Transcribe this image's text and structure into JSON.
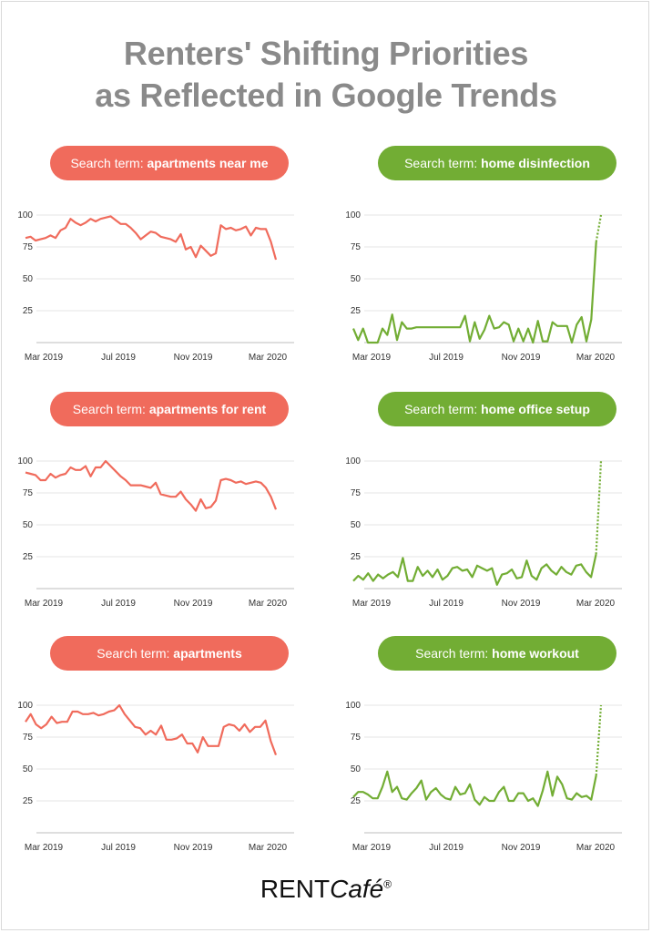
{
  "title": {
    "line1": "Renters' Shifting Priorities",
    "line2": "as Reflected in Google Trends"
  },
  "logo": {
    "text": "RENT",
    "italic": "Café",
    "mark": "®"
  },
  "colors": {
    "red": "#f06b5c",
    "green": "#72ad34",
    "title": "#8a8a8a"
  },
  "chart_data": [
    {
      "type": "line",
      "prefix": "Search term: ",
      "term": "apartments near me",
      "color": "red",
      "xlabels": [
        "Mar 2019",
        "Jul 2019",
        "Nov 2019",
        "Mar 2020"
      ],
      "yticks": [
        "100",
        "75",
        "50",
        "25"
      ],
      "ylim": [
        0,
        100
      ],
      "values": [
        82,
        83,
        80,
        81,
        82,
        84,
        82,
        88,
        90,
        97,
        94,
        92,
        94,
        97,
        95,
        97,
        98,
        99,
        96,
        93,
        93,
        90,
        86,
        81,
        84,
        87,
        86,
        83,
        82,
        81,
        79,
        85,
        73,
        75,
        67,
        76,
        72,
        68,
        70,
        92,
        89,
        90,
        88,
        89,
        91,
        84,
        90,
        89,
        89,
        79,
        65
      ],
      "dashed_from": null
    },
    {
      "type": "line",
      "prefix": "Search term: ",
      "term": "home disinfection",
      "color": "green",
      "xlabels": [
        "Mar 2019",
        "Jul 2019",
        "Nov 2019",
        "Mar 2020"
      ],
      "yticks": [
        "100",
        "75",
        "50",
        "25"
      ],
      "ylim": [
        0,
        100
      ],
      "values": [
        11,
        2,
        11,
        0,
        0,
        0,
        11,
        6,
        22,
        2,
        16,
        11,
        11,
        12,
        12,
        12,
        12,
        12,
        12,
        12,
        12,
        12,
        12,
        21,
        1,
        16,
        3,
        10,
        21,
        11,
        12,
        16,
        14,
        1,
        11,
        1,
        11,
        0,
        17,
        1,
        1,
        16,
        13,
        13,
        13,
        0,
        14,
        20,
        1,
        18,
        79,
        100
      ],
      "dashed_from": 50
    },
    {
      "type": "line",
      "prefix": "Search term: ",
      "term": "apartments for rent",
      "color": "red",
      "xlabels": [
        "Mar 2019",
        "Jul 2019",
        "Nov 2019",
        "Mar 2020"
      ],
      "yticks": [
        "100",
        "75",
        "50",
        "25"
      ],
      "ylim": [
        0,
        100
      ],
      "values": [
        91,
        90,
        89,
        85,
        85,
        90,
        87,
        89,
        90,
        95,
        93,
        93,
        96,
        88,
        95,
        95,
        100,
        96,
        92,
        88,
        85,
        81,
        81,
        81,
        80,
        79,
        83,
        74,
        73,
        72,
        72,
        76,
        70,
        66,
        61,
        70,
        63,
        64,
        69,
        85,
        86,
        85,
        83,
        84,
        82,
        83,
        84,
        83,
        79,
        72,
        62
      ],
      "dashed_from": null
    },
    {
      "type": "line",
      "prefix": "Search term: ",
      "term": "home office setup",
      "color": "green",
      "xlabels": [
        "Mar 2019",
        "Jul 2019",
        "Nov 2019",
        "Mar 2020"
      ],
      "yticks": [
        "100",
        "75",
        "50",
        "25"
      ],
      "ylim": [
        0,
        100
      ],
      "values": [
        6,
        10,
        7,
        12,
        6,
        11,
        8,
        11,
        13,
        9,
        24,
        6,
        6,
        17,
        10,
        14,
        9,
        15,
        7,
        10,
        16,
        17,
        14,
        15,
        9,
        18,
        16,
        14,
        16,
        3,
        11,
        12,
        15,
        8,
        9,
        22,
        10,
        7,
        16,
        19,
        14,
        11,
        17,
        13,
        11,
        18,
        19,
        13,
        9,
        27,
        100
      ],
      "dashed_from": 49
    },
    {
      "type": "line",
      "prefix": "Search term: ",
      "term": "apartments",
      "color": "red",
      "xlabels": [
        "Mar 2019",
        "Jul 2019",
        "Nov 2019",
        "Mar 2020"
      ],
      "yticks": [
        "100",
        "75",
        "50",
        "25"
      ],
      "ylim": [
        0,
        100
      ],
      "values": [
        87,
        93,
        85,
        82,
        85,
        91,
        86,
        87,
        87,
        95,
        95,
        93,
        93,
        94,
        92,
        93,
        95,
        96,
        100,
        93,
        88,
        83,
        82,
        77,
        80,
        77,
        84,
        73,
        73,
        74,
        77,
        70,
        70,
        63,
        75,
        68,
        68,
        68,
        83,
        85,
        84,
        80,
        85,
        79,
        83,
        83,
        88,
        72,
        61
      ],
      "dashed_from": null
    },
    {
      "type": "line",
      "prefix": "Search term: ",
      "term": "home workout",
      "color": "green",
      "xlabels": [
        "Mar 2019",
        "Jul 2019",
        "Nov 2019",
        "Mar 2020"
      ],
      "yticks": [
        "100",
        "75",
        "50",
        "25"
      ],
      "ylim": [
        0,
        100
      ],
      "values": [
        28,
        32,
        32,
        30,
        27,
        27,
        36,
        48,
        32,
        36,
        27,
        26,
        31,
        35,
        41,
        26,
        32,
        35,
        30,
        27,
        26,
        36,
        30,
        31,
        38,
        26,
        22,
        28,
        25,
        25,
        32,
        36,
        25,
        25,
        31,
        31,
        25,
        27,
        21,
        33,
        48,
        29,
        44,
        38,
        27,
        26,
        31,
        28,
        29,
        26,
        45,
        100
      ],
      "dashed_from": 50
    }
  ]
}
